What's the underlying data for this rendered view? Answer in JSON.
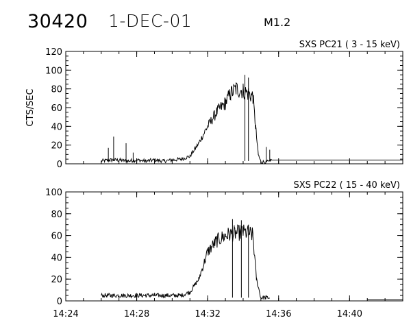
{
  "header": {
    "event_id": "30420",
    "date": "1-DEC-01",
    "flare_class": "M1.2"
  },
  "chart_data": [
    {
      "type": "line",
      "title": "SXS PC21  (  3 - 15 keV)",
      "ylabel": "CTS/SEC",
      "xlabel": "",
      "ylim": [
        0,
        120
      ],
      "yticks": [
        0,
        20,
        40,
        60,
        80,
        100,
        120
      ],
      "xlim": [
        "14:24",
        "14:43"
      ],
      "xticks": [
        "14:24",
        "14:28",
        "14:32",
        "14:36",
        "14:40"
      ],
      "grid": false,
      "series": [
        {
          "x": [
            "14:26.0",
            "14:26.5",
            "14:27.0",
            "14:27.5",
            "14:28.0",
            "14:28.5",
            "14:29.0",
            "14:29.5",
            "14:30.0",
            "14:30.5",
            "14:31.0",
            "14:31.5",
            "14:32.0",
            "14:32.5",
            "14:33.0",
            "14:33.3",
            "14:33.6",
            "14:34.0",
            "14:34.3",
            "14:34.55",
            "14:34.7",
            "14:34.85",
            "14:35.0",
            "14:35.3",
            "14:35.5",
            "14:35.52",
            "14:36.0",
            "14:38.0",
            "14:40.0",
            "14:42.0",
            "14:43.0"
          ],
          "y": [
            3,
            4,
            4,
            3,
            4,
            3,
            4,
            3,
            4,
            5,
            8,
            22,
            40,
            55,
            65,
            75,
            80,
            78,
            75,
            72,
            40,
            10,
            2,
            2,
            2,
            4,
            4,
            4,
            4,
            4,
            4
          ]
        }
      ],
      "spikes": [
        {
          "x": "14:26.4",
          "y": 17
        },
        {
          "x": "14:26.7",
          "y": 29
        },
        {
          "x": "14:27.4",
          "y": 22
        },
        {
          "x": "14:27.8",
          "y": 12
        },
        {
          "x": "14:35.3",
          "y": 18
        },
        {
          "x": "14:35.5",
          "y": 15
        },
        {
          "x": "14:34.1",
          "y": 95
        },
        {
          "x": "14:34.3",
          "y": 92
        }
      ]
    },
    {
      "type": "line",
      "title": "SXS PC22  ( 15 - 40 keV)",
      "ylabel": "",
      "xlabel": "",
      "ylim": [
        0,
        100
      ],
      "yticks": [
        0,
        20,
        40,
        60,
        80,
        100
      ],
      "xlim": [
        "14:24",
        "14:43"
      ],
      "xticks": [
        "14:24",
        "14:28",
        "14:32",
        "14:36",
        "14:40"
      ],
      "grid": false,
      "series": [
        {
          "x": [
            "14:26.0",
            "14:26.5",
            "14:27.0",
            "14:27.5",
            "14:28.0",
            "14:28.5",
            "14:29.0",
            "14:29.5",
            "14:30.0",
            "14:30.5",
            "14:31.0",
            "14:31.5",
            "14:32.0",
            "14:32.5",
            "14:33.0",
            "14:33.5",
            "14:34.0",
            "14:34.4",
            "14:34.55",
            "14:34.75",
            "14:35.0",
            "14:35.3",
            "14:35.5",
            "14:35.52",
            "14:40.0",
            "14:41.0",
            "14:42.0",
            "14:43.0"
          ],
          "y": [
            5,
            5,
            5,
            5,
            5,
            5,
            5,
            5,
            5,
            5,
            8,
            20,
            45,
            55,
            60,
            62,
            63,
            62,
            60,
            20,
            3,
            3,
            3,
            null,
            null,
            1,
            1,
            1
          ]
        }
      ],
      "spikes": [
        {
          "x": "14:33.4",
          "y": 75
        },
        {
          "x": "14:33.9",
          "y": 74
        },
        {
          "x": "14:34.3",
          "y": 70
        }
      ]
    }
  ]
}
